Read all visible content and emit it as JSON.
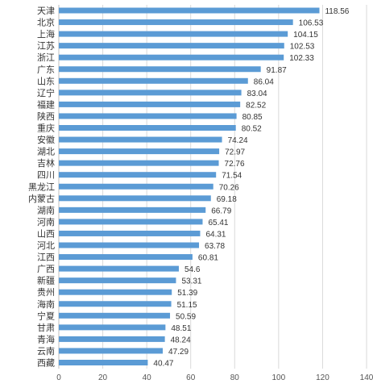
{
  "chart_data": {
    "type": "bar",
    "orientation": "horizontal",
    "categories": [
      "天津",
      "北京",
      "上海",
      "江苏",
      "浙江",
      "广东",
      "山东",
      "辽宁",
      "福建",
      "陕西",
      "重庆",
      "安徽",
      "湖北",
      "吉林",
      "四川",
      "黑龙江",
      "内蒙古",
      "湖南",
      "河南",
      "山西",
      "河北",
      "江西",
      "广西",
      "新疆",
      "贵州",
      "海南",
      "宁夏",
      "甘肃",
      "青海",
      "云南",
      "西藏"
    ],
    "values": [
      118.56,
      106.53,
      104.15,
      102.53,
      102.33,
      91.87,
      86.04,
      83.04,
      82.52,
      80.85,
      80.52,
      74.24,
      72.97,
      72.76,
      71.54,
      70.26,
      69.18,
      66.79,
      65.41,
      64.31,
      63.78,
      60.81,
      54.6,
      53.31,
      51.39,
      51.15,
      50.59,
      48.51,
      48.24,
      47.29,
      40.47
    ],
    "value_labels": [
      "118.56",
      "106.53",
      "104.15",
      "102.53",
      "102.33",
      "91.87",
      "86.04",
      "83.04",
      "82.52",
      "80.85",
      "80.52",
      "74.24",
      "72.97",
      "72.76",
      "71.54",
      "70.26",
      "69.18",
      "66.79",
      "65.41",
      "64.31",
      "63.78",
      "60.81",
      "54.6",
      "53.31",
      "51.39",
      "51.15",
      "50.59",
      "48.51",
      "48.24",
      "47.29",
      "40.47"
    ],
    "x_ticks": [
      "0",
      "20",
      "40",
      "60",
      "80",
      "100",
      "120",
      "140"
    ],
    "xlim": [
      0,
      140
    ],
    "title": "",
    "xlabel": "",
    "ylabel": "",
    "grid": "vertical",
    "legend": "none",
    "bar_color": "#5b9bd5"
  }
}
